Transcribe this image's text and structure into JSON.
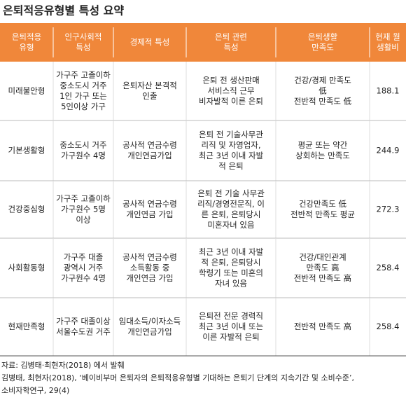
{
  "header": {
    "title": "은퇴적응유형별 특성 요약"
  },
  "table": {
    "columns": [
      [
        "은퇴적응",
        "유형"
      ],
      [
        "인구사회적",
        "특성"
      ],
      [
        "경제적 특성"
      ],
      [
        "은퇴 관련",
        "특성"
      ],
      [
        "은퇴생활",
        "만족도"
      ],
      [
        "현재 월",
        "생활비"
      ]
    ],
    "rows": [
      [
        [
          "미래불안형"
        ],
        [
          "가구주 고졸이하",
          "중소도시 거주",
          "1인 가구 또는",
          "5인이상 가구"
        ],
        [
          "은퇴자산 본격적",
          "인출"
        ],
        [
          "은퇴 전 생산판매",
          "서비스직 근무",
          "비자발적 이른 은퇴"
        ],
        [
          "건강/경제 만족도",
          "低",
          "전반적 만족도 低"
        ],
        [
          188.1
        ]
      ],
      [
        [
          "기본생활형"
        ],
        [
          "중소도시 거주",
          "가구원수 4명"
        ],
        [
          "공사적 연금수령",
          "개인연금가입"
        ],
        [
          "은퇴 전 기술사무관",
          "리직 및 자영업자,",
          "최근 3년 이내 자발",
          "적 은퇴"
        ],
        [
          "평균 또는 약간",
          "상회하는 만족도"
        ],
        [
          244.9
        ]
      ],
      [
        [
          "건강중심형"
        ],
        [
          "가구주 고졸이하",
          "가구원수 5명",
          "이상"
        ],
        [
          "공사적 연금수령",
          "개인연금 가입"
        ],
        [
          "은퇴 전 기술 사무관",
          "리직/경영전문직, 이",
          "른 은퇴, 은퇴당시",
          "미혼자녀 있음"
        ],
        [
          "건강만족도 低",
          "전반적 만족도 평균"
        ],
        [
          272.3
        ]
      ],
      [
        [
          "사회활동형"
        ],
        [
          "가구주 대졸",
          "광역시 거주",
          "가구원수 4명"
        ],
        [
          "공사적 연금수령",
          "소득활동 중",
          "개인연금 가입"
        ],
        [
          "최근 3년 이내 자발",
          "적 은퇴, 은퇴당시",
          "학령기 또는 미혼의",
          "자녀 있음"
        ],
        [
          "건강/대인관계",
          "만족도 高",
          "전반적 만족도 高"
        ],
        [
          258.4
        ]
      ],
      [
        [
          "현재만족형"
        ],
        [
          "가구주 대졸이상",
          "서울수도권 거주"
        ],
        [
          "임대소득/이자소득",
          "개인연금가입"
        ],
        [
          "은퇴전 전문 경력직",
          "최근 3년 이내 또는",
          "이른 자발적 은퇴"
        ],
        [
          "전반적 만족도 高"
        ],
        [
          258.4
        ]
      ]
    ]
  },
  "footer": [
    "자료: 김병태·최현자(2018) 에서 발췌",
    "김병태, 최현자(2018), ‘베이비부머 은퇴자의 은퇴적응유형별 기대하는 은퇴기 단계의 지속기간 및 소비수준’,",
    "소비자학연구, 29(4)"
  ]
}
